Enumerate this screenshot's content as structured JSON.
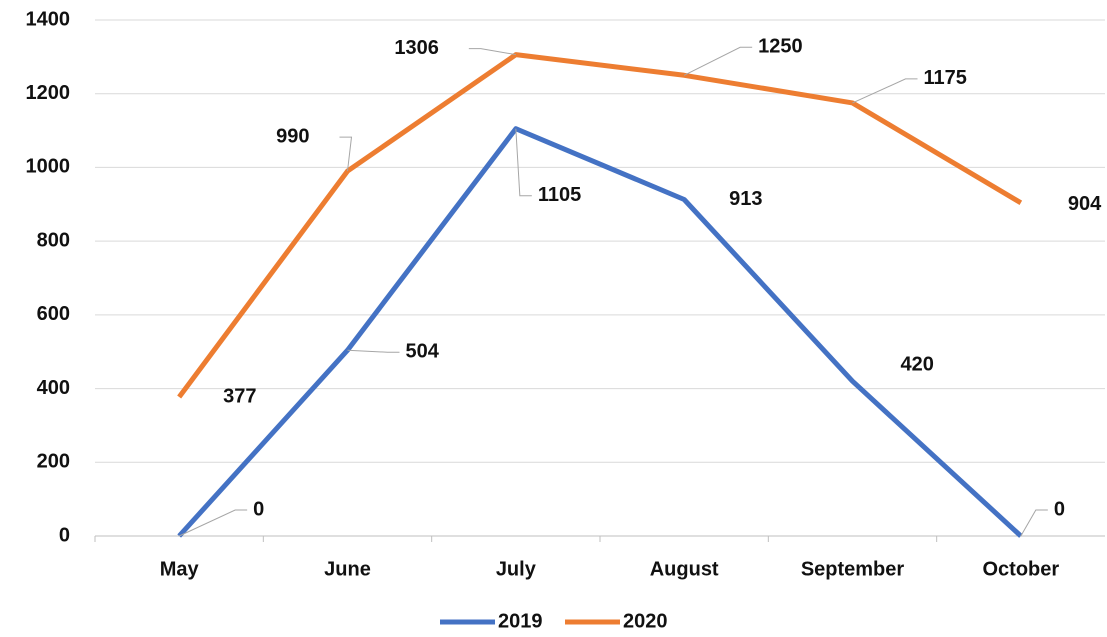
{
  "chart_data": {
    "type": "line",
    "categories": [
      "May",
      "June",
      "July",
      "August",
      "September",
      "October"
    ],
    "series": [
      {
        "name": "2019",
        "color": "#4472c4",
        "values": [
          0,
          504,
          1105,
          913,
          420,
          0
        ]
      },
      {
        "name": "2020",
        "color": "#ed7d31",
        "values": [
          377,
          990,
          1306,
          1250,
          1175,
          904
        ]
      }
    ],
    "ylim": [
      0,
      1400
    ],
    "yticks": [
      0,
      200,
      400,
      600,
      800,
      1000,
      1200,
      1400
    ],
    "grid": true,
    "legend": "bottom"
  }
}
